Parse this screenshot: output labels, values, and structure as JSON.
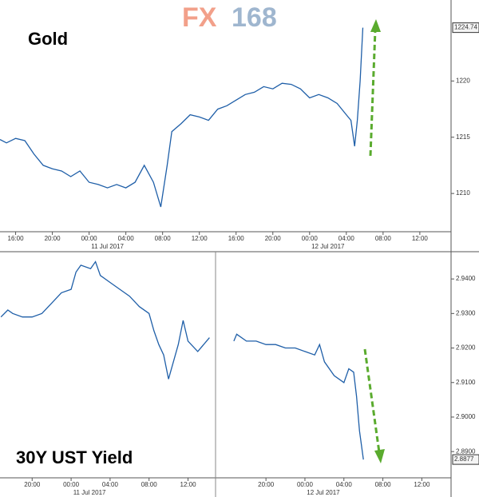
{
  "watermark": {
    "left": "FX",
    "right": "168"
  },
  "chart_data": [
    {
      "type": "line",
      "title": "Gold",
      "x": [
        14.3,
        15,
        16,
        17,
        18,
        19,
        20,
        21,
        22,
        23,
        24,
        25,
        26,
        27,
        28,
        29,
        30,
        31,
        31.8,
        32.5,
        33,
        34,
        35,
        36,
        37,
        38,
        39,
        40,
        41,
        42,
        43,
        44,
        45,
        46,
        47,
        48,
        49,
        50,
        51,
        52,
        52.5,
        52.9,
        53.2,
        53.5,
        53.8
      ],
      "series": [
        {
          "name": "Gold",
          "color": "#1f5fa8",
          "values": [
            1214.8,
            1214.5,
            1214.9,
            1214.7,
            1213.5,
            1212.5,
            1212.2,
            1212.0,
            1211.5,
            1212.0,
            1211.0,
            1210.8,
            1210.5,
            1210.8,
            1210.5,
            1211.0,
            1212.5,
            1211.0,
            1208.8,
            1212.5,
            1215.5,
            1216.2,
            1217.0,
            1216.8,
            1216.5,
            1217.5,
            1217.8,
            1218.3,
            1218.8,
            1219.0,
            1219.5,
            1219.3,
            1219.8,
            1219.7,
            1219.3,
            1218.5,
            1218.8,
            1218.5,
            1218.0,
            1217.0,
            1216.5,
            1214.2,
            1216.5,
            1220.0,
            1224.74
          ]
        }
      ],
      "xlim": [
        14.3,
        63.4
      ],
      "xticks": [
        {
          "value": 16,
          "label": "16:00"
        },
        {
          "value": 20,
          "label": "20:00"
        },
        {
          "value": 24,
          "label": "00:00"
        },
        {
          "value": 28,
          "label": "04:00"
        },
        {
          "value": 32,
          "label": "08:00"
        },
        {
          "value": 36,
          "label": "12:00"
        },
        {
          "value": 40,
          "label": "16:00"
        },
        {
          "value": 44,
          "label": "20:00"
        },
        {
          "value": 48,
          "label": "00:00"
        },
        {
          "value": 52,
          "label": "04:00"
        },
        {
          "value": 56,
          "label": "08:00"
        },
        {
          "value": 60,
          "label": "12:00"
        }
      ],
      "date_labels": [
        {
          "value": 24,
          "label": "11 Jul 2017"
        },
        {
          "value": 48,
          "label": "12 Jul 2017"
        }
      ],
      "ylim": [
        1206.6,
        1227.2
      ],
      "yticks": [
        1210,
        1215,
        1220
      ],
      "last_value": {
        "value": 1224.74,
        "label": "1224.74"
      }
    },
    {
      "type": "line",
      "title": "30Y UST Yield",
      "x": [
        16.8,
        17.5,
        18,
        19,
        20,
        21,
        22,
        23,
        24,
        24.5,
        25,
        26,
        26.5,
        27,
        28,
        29,
        30,
        31,
        32,
        32.5,
        33,
        33.5,
        34,
        34.5,
        35,
        35.5,
        36,
        37,
        38.2,
        39.5,
        40.7,
        41,
        42,
        43,
        44,
        45,
        46,
        47,
        48,
        49,
        49.5,
        50,
        51,
        52,
        52.5,
        53,
        53.3,
        53.6,
        54
      ],
      "series": [
        {
          "name": "30Y UST Yield",
          "color": "#1f5fa8",
          "values": [
            2.929,
            2.931,
            2.93,
            2.929,
            2.929,
            2.93,
            2.933,
            2.936,
            2.937,
            2.942,
            2.944,
            2.943,
            2.945,
            2.941,
            2.939,
            2.937,
            2.935,
            2.932,
            2.93,
            2.925,
            2.921,
            2.918,
            2.911,
            2.916,
            2.921,
            2.928,
            2.922,
            2.919,
            2.923,
            null,
            2.922,
            2.924,
            2.922,
            2.922,
            2.921,
            2.921,
            2.92,
            2.92,
            2.919,
            2.918,
            2.921,
            2.916,
            2.912,
            2.91,
            2.914,
            2.913,
            2.906,
            2.896,
            2.8877
          ]
        }
      ],
      "xlim": [
        16.7,
        63.0
      ],
      "xticks": [
        {
          "value": 20,
          "label": "20:00"
        },
        {
          "value": 24,
          "label": "00:00"
        },
        {
          "value": 28,
          "label": "04:00"
        },
        {
          "value": 32,
          "label": "08:00"
        },
        {
          "value": 36,
          "label": "12:00"
        },
        {
          "value": 44,
          "label": "20:00"
        },
        {
          "value": 48,
          "label": "00:00"
        },
        {
          "value": 52,
          "label": "04:00"
        },
        {
          "value": 56,
          "label": "08:00"
        },
        {
          "value": 60,
          "label": "12:00"
        }
      ],
      "date_labels": [
        {
          "value": 24,
          "label": "11 Jul 2017"
        },
        {
          "value": 48,
          "label": "12 Jul 2017"
        }
      ],
      "ylim": [
        2.8824,
        2.9479
      ],
      "yticks": [
        {
          "value": 2.89,
          "label": "2.8900"
        },
        {
          "value": 2.9,
          "label": "2.9000"
        },
        {
          "value": 2.91,
          "label": "2.9100"
        },
        {
          "value": 2.92,
          "label": "2.9200"
        },
        {
          "value": 2.93,
          "label": "2.9300"
        },
        {
          "value": 2.94,
          "label": "2.9400"
        }
      ],
      "last_value": {
        "value": 2.8877,
        "label": "2.8877"
      }
    }
  ]
}
